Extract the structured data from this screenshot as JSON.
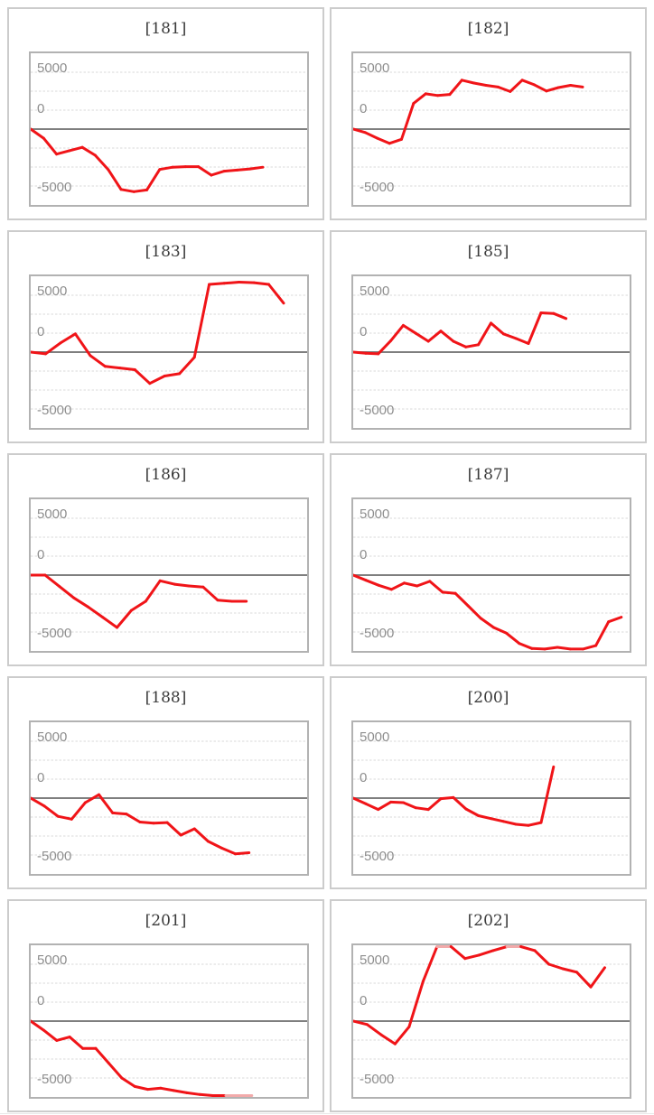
{
  "axis": {
    "top": "5000",
    "mid": "0",
    "bottom": "-5000"
  },
  "colors": {
    "line": "#f01418",
    "line_clipped": "#f2aaaa",
    "zero_line": "#7f7f7f",
    "gridline": "#d9d9d9",
    "plot_border": "#b2b2b2",
    "card_border": "#cccccc",
    "title_text": "#3b3b3b",
    "axis_text": "#8e8e8e"
  },
  "chart_data": [
    {
      "type": "line",
      "title": "[181]",
      "ylim": [
        -6667,
        6667
      ],
      "yticks": [
        "5000",
        "0",
        "-5000"
      ],
      "grid": "dotted horizontal, solid zero line",
      "legend": "none",
      "xlabel": "",
      "ylabel": "",
      "end_fraction": 0.84,
      "values": [
        0,
        -800,
        -2200,
        -1900,
        -1600,
        -2300,
        -3550,
        -5300,
        -5500,
        -5350,
        -3550,
        -3350,
        -3300,
        -3300,
        -4050,
        -3700,
        -3600,
        -3500,
        -3350
      ]
    },
    {
      "type": "line",
      "title": "[182]",
      "ylim": [
        -6667,
        6667
      ],
      "yticks": [
        "5000",
        "0",
        "-5000"
      ],
      "grid": "dotted horizontal, solid zero line",
      "legend": "none",
      "xlabel": "",
      "ylabel": "",
      "end_fraction": 0.83,
      "values": [
        0,
        -300,
        -800,
        -1250,
        -900,
        2250,
        3100,
        2950,
        3050,
        4300,
        4050,
        3850,
        3700,
        3300,
        4300,
        3900,
        3350,
        3650,
        3850,
        3700
      ]
    },
    {
      "type": "line",
      "title": "[183]",
      "ylim": [
        -6667,
        6667
      ],
      "yticks": [
        "5000",
        "0",
        "-5000"
      ],
      "grid": "dotted horizontal, solid zero line",
      "legend": "none",
      "xlabel": "",
      "ylabel": "",
      "end_fraction": 0.915,
      "values": [
        0,
        -150,
        800,
        1600,
        -300,
        -1250,
        -1400,
        -1550,
        -2750,
        -2100,
        -1900,
        -450,
        5950,
        6050,
        6150,
        6100,
        5950,
        4300
      ]
    },
    {
      "type": "line",
      "title": "[185]",
      "ylim": [
        -6667,
        6667
      ],
      "yticks": [
        "5000",
        "0",
        "-5000"
      ],
      "grid": "dotted horizontal, solid zero line",
      "legend": "none",
      "xlabel": "",
      "ylabel": "",
      "end_fraction": 0.77,
      "values": [
        0,
        -100,
        -150,
        1000,
        2350,
        1650,
        950,
        1850,
        950,
        450,
        650,
        2550,
        1600,
        1200,
        750,
        3450,
        3400,
        2950
      ]
    },
    {
      "type": "line",
      "title": "[186]",
      "ylim": [
        -6667,
        6667
      ],
      "yticks": [
        "5000",
        "0",
        "-5000"
      ],
      "grid": "dotted horizontal, solid zero line",
      "legend": "none",
      "xlabel": "",
      "ylabel": "",
      "end_fraction": 0.78,
      "values": [
        0,
        0,
        -1000,
        -2000,
        -2800,
        -3700,
        -4600,
        -3100,
        -2300,
        -500,
        -800,
        -950,
        -1050,
        -2200,
        -2300,
        -2300
      ]
    },
    {
      "type": "line",
      "title": "[187]",
      "ylim": [
        -6667,
        6667
      ],
      "yticks": [
        "5000",
        "0",
        "-5000"
      ],
      "grid": "dotted horizontal, solid zero line",
      "legend": "none",
      "xlabel": "",
      "ylabel": "",
      "end_fraction": 0.97,
      "values": [
        0,
        -450,
        -900,
        -1250,
        -700,
        -950,
        -550,
        -1500,
        -1600,
        -2700,
        -3800,
        -4600,
        -5100,
        -6000,
        -6450,
        -6500,
        -6350,
        -6500,
        -6500,
        -6200,
        -4100,
        -3700
      ]
    },
    {
      "type": "line",
      "title": "[188]",
      "ylim": [
        -6667,
        6667
      ],
      "yticks": [
        "5000",
        "0",
        "-5000"
      ],
      "grid": "dotted horizontal, solid zero line",
      "legend": "none",
      "xlabel": "",
      "ylabel": "",
      "end_fraction": 0.79,
      "values": [
        0,
        -700,
        -1600,
        -1850,
        -400,
        300,
        -1300,
        -1400,
        -2100,
        -2200,
        -2150,
        -3250,
        -2700,
        -3800,
        -4400,
        -4900,
        -4800
      ]
    },
    {
      "type": "line",
      "title": "[200]",
      "ylim": [
        -6667,
        6667
      ],
      "yticks": [
        "5000",
        "0",
        "-5000"
      ],
      "grid": "dotted horizontal, solid zero line",
      "legend": "none",
      "xlabel": "",
      "ylabel": "",
      "end_fraction": 0.725,
      "values": [
        0,
        -500,
        -1000,
        -350,
        -400,
        -850,
        -1000,
        -50,
        50,
        -950,
        -1550,
        -1800,
        -2050,
        -2300,
        -2400,
        -2150,
        2750
      ]
    },
    {
      "type": "line",
      "title": "[201]",
      "ylim": [
        -6667,
        6667
      ],
      "yticks": [
        "5000",
        "0",
        "-5000"
      ],
      "grid": "dotted horizontal, solid zero line",
      "legend": "none",
      "xlabel": "",
      "ylabel": "",
      "end_fraction": 0.8,
      "values": [
        0,
        -800,
        -1700,
        -1400,
        -2400,
        -2400,
        -3700,
        -5000,
        -5750,
        -6000,
        -5900,
        -6100,
        -6300,
        -6450,
        -6550,
        -6700,
        -6700,
        -6700
      ]
    },
    {
      "type": "line",
      "title": "[202]",
      "ylim": [
        -6667,
        6667
      ],
      "yticks": [
        "5000",
        "0",
        "-5000"
      ],
      "grid": "dotted horizontal, solid zero line",
      "legend": "none",
      "xlabel": "",
      "ylabel": "",
      "end_fraction": 0.91,
      "values": [
        0,
        -300,
        -1200,
        -2000,
        -500,
        3500,
        6750,
        6700,
        5500,
        5800,
        6200,
        6750,
        6750,
        6200,
        5000,
        4600,
        4300,
        3000,
        4700
      ]
    }
  ]
}
